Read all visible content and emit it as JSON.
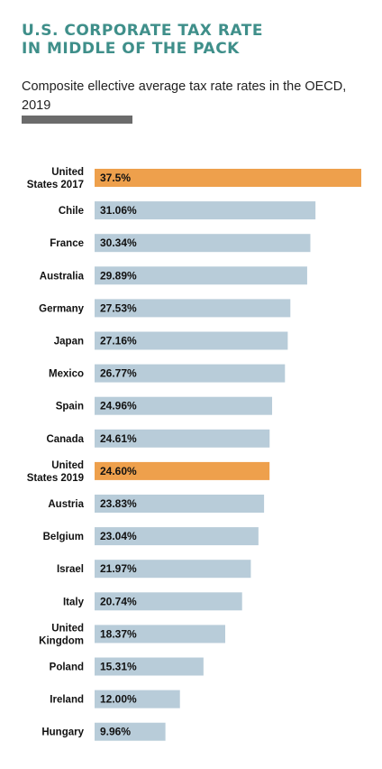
{
  "header": {
    "title": "U.S. CORPORATE TAX RATE\nIN MIDDLE OF THE PACK",
    "subtitle": "Composite ellective average tax rate rates in the OECD, 2019"
  },
  "colors": {
    "title": "#3f8f8a",
    "bar_default": "#b8ccd9",
    "bar_highlight": "#eea04c",
    "rule": "#6b6b6b"
  },
  "chart_data": {
    "type": "bar",
    "orientation": "horizontal",
    "title": "U.S. CORPORATE TAX RATE IN MIDDLE OF THE PACK",
    "subtitle": "Composite ellective average tax rate rates in the OECD, 2019",
    "categories": [
      [
        "United",
        "States 2017"
      ],
      [
        "Chile"
      ],
      [
        "France"
      ],
      [
        "Australia"
      ],
      [
        "Germany"
      ],
      [
        "Japan"
      ],
      [
        "Mexico"
      ],
      [
        "Spain"
      ],
      [
        "Canada"
      ],
      [
        "United",
        "States 2019"
      ],
      [
        "Austria"
      ],
      [
        "Belgium"
      ],
      [
        "Israel"
      ],
      [
        "Italy"
      ],
      [
        "United",
        "Kingdom"
      ],
      [
        "Poland"
      ],
      [
        "Ireland"
      ],
      [
        "Hungary"
      ]
    ],
    "values": [
      37.5,
      31.06,
      30.34,
      29.89,
      27.53,
      27.16,
      26.77,
      24.96,
      24.61,
      24.6,
      23.83,
      23.04,
      21.97,
      20.74,
      18.37,
      15.31,
      12.0,
      9.96
    ],
    "value_labels": [
      "37.5%",
      "31.06%",
      "30.34%",
      "29.89%",
      "27.53%",
      "27.16%",
      "26.77%",
      "24.96%",
      "24.61%",
      "24.60%",
      "23.83%",
      "23.04%",
      "21.97%",
      "20.74%",
      "18.37%",
      "15.31%",
      "12.00%",
      "9.96%"
    ],
    "highlighted": [
      true,
      false,
      false,
      false,
      false,
      false,
      false,
      false,
      false,
      true,
      false,
      false,
      false,
      false,
      false,
      false,
      false,
      false
    ],
    "xlim": [
      0,
      37.5
    ],
    "grid": false,
    "xlabel": "",
    "ylabel": ""
  }
}
